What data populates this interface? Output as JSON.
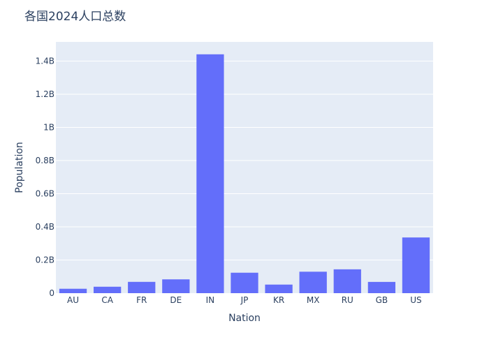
{
  "chart_data": {
    "type": "bar",
    "title": "各国2024人口总数",
    "xlabel": "Nation",
    "ylabel": "Population",
    "categories": [
      "AU",
      "CA",
      "FR",
      "DE",
      "IN",
      "JP",
      "KR",
      "MX",
      "RU",
      "GB",
      "US"
    ],
    "values": [
      26500000,
      38800000,
      68200000,
      83300000,
      1441000000,
      123300000,
      51700000,
      129400000,
      143700000,
      67900000,
      336000000
    ],
    "ylim": [
      0,
      1516000000
    ],
    "yticks": [
      0,
      200000000,
      400000000,
      600000000,
      800000000,
      1000000000,
      1200000000,
      1400000000
    ],
    "ytick_labels": [
      "0",
      "0.2B",
      "0.4B",
      "0.6B",
      "0.8B",
      "1B",
      "1.2B",
      "1.4B"
    ],
    "grid": true,
    "colors": {
      "bar": "#636efa",
      "plot_bg": "#e5ecf6",
      "grid": "#ffffff",
      "text": "#2a3f5f"
    }
  }
}
